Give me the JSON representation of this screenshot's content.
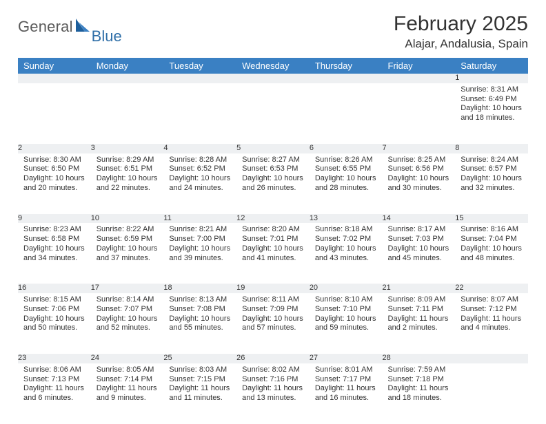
{
  "brand": {
    "general": "General",
    "blue": "Blue"
  },
  "title": "February 2025",
  "location": "Alajar, Andalusia, Spain",
  "colors": {
    "header_bg": "#3a80c3",
    "header_text": "#ffffff",
    "daynum_bg": "#eef0f2",
    "row_border": "#3a80c3",
    "logo_blue": "#2f6fa8",
    "logo_gray": "#5a5a5a"
  },
  "day_names": [
    "Sunday",
    "Monday",
    "Tuesday",
    "Wednesday",
    "Thursday",
    "Friday",
    "Saturday"
  ],
  "weeks": [
    [
      null,
      null,
      null,
      null,
      null,
      null,
      {
        "n": "1",
        "sr": "Sunrise: 8:31 AM",
        "ss": "Sunset: 6:49 PM",
        "dl": "Daylight: 10 hours and 18 minutes."
      }
    ],
    [
      {
        "n": "2",
        "sr": "Sunrise: 8:30 AM",
        "ss": "Sunset: 6:50 PM",
        "dl": "Daylight: 10 hours and 20 minutes."
      },
      {
        "n": "3",
        "sr": "Sunrise: 8:29 AM",
        "ss": "Sunset: 6:51 PM",
        "dl": "Daylight: 10 hours and 22 minutes."
      },
      {
        "n": "4",
        "sr": "Sunrise: 8:28 AM",
        "ss": "Sunset: 6:52 PM",
        "dl": "Daylight: 10 hours and 24 minutes."
      },
      {
        "n": "5",
        "sr": "Sunrise: 8:27 AM",
        "ss": "Sunset: 6:53 PM",
        "dl": "Daylight: 10 hours and 26 minutes."
      },
      {
        "n": "6",
        "sr": "Sunrise: 8:26 AM",
        "ss": "Sunset: 6:55 PM",
        "dl": "Daylight: 10 hours and 28 minutes."
      },
      {
        "n": "7",
        "sr": "Sunrise: 8:25 AM",
        "ss": "Sunset: 6:56 PM",
        "dl": "Daylight: 10 hours and 30 minutes."
      },
      {
        "n": "8",
        "sr": "Sunrise: 8:24 AM",
        "ss": "Sunset: 6:57 PM",
        "dl": "Daylight: 10 hours and 32 minutes."
      }
    ],
    [
      {
        "n": "9",
        "sr": "Sunrise: 8:23 AM",
        "ss": "Sunset: 6:58 PM",
        "dl": "Daylight: 10 hours and 34 minutes."
      },
      {
        "n": "10",
        "sr": "Sunrise: 8:22 AM",
        "ss": "Sunset: 6:59 PM",
        "dl": "Daylight: 10 hours and 37 minutes."
      },
      {
        "n": "11",
        "sr": "Sunrise: 8:21 AM",
        "ss": "Sunset: 7:00 PM",
        "dl": "Daylight: 10 hours and 39 minutes."
      },
      {
        "n": "12",
        "sr": "Sunrise: 8:20 AM",
        "ss": "Sunset: 7:01 PM",
        "dl": "Daylight: 10 hours and 41 minutes."
      },
      {
        "n": "13",
        "sr": "Sunrise: 8:18 AM",
        "ss": "Sunset: 7:02 PM",
        "dl": "Daylight: 10 hours and 43 minutes."
      },
      {
        "n": "14",
        "sr": "Sunrise: 8:17 AM",
        "ss": "Sunset: 7:03 PM",
        "dl": "Daylight: 10 hours and 45 minutes."
      },
      {
        "n": "15",
        "sr": "Sunrise: 8:16 AM",
        "ss": "Sunset: 7:04 PM",
        "dl": "Daylight: 10 hours and 48 minutes."
      }
    ],
    [
      {
        "n": "16",
        "sr": "Sunrise: 8:15 AM",
        "ss": "Sunset: 7:06 PM",
        "dl": "Daylight: 10 hours and 50 minutes."
      },
      {
        "n": "17",
        "sr": "Sunrise: 8:14 AM",
        "ss": "Sunset: 7:07 PM",
        "dl": "Daylight: 10 hours and 52 minutes."
      },
      {
        "n": "18",
        "sr": "Sunrise: 8:13 AM",
        "ss": "Sunset: 7:08 PM",
        "dl": "Daylight: 10 hours and 55 minutes."
      },
      {
        "n": "19",
        "sr": "Sunrise: 8:11 AM",
        "ss": "Sunset: 7:09 PM",
        "dl": "Daylight: 10 hours and 57 minutes."
      },
      {
        "n": "20",
        "sr": "Sunrise: 8:10 AM",
        "ss": "Sunset: 7:10 PM",
        "dl": "Daylight: 10 hours and 59 minutes."
      },
      {
        "n": "21",
        "sr": "Sunrise: 8:09 AM",
        "ss": "Sunset: 7:11 PM",
        "dl": "Daylight: 11 hours and 2 minutes."
      },
      {
        "n": "22",
        "sr": "Sunrise: 8:07 AM",
        "ss": "Sunset: 7:12 PM",
        "dl": "Daylight: 11 hours and 4 minutes."
      }
    ],
    [
      {
        "n": "23",
        "sr": "Sunrise: 8:06 AM",
        "ss": "Sunset: 7:13 PM",
        "dl": "Daylight: 11 hours and 6 minutes."
      },
      {
        "n": "24",
        "sr": "Sunrise: 8:05 AM",
        "ss": "Sunset: 7:14 PM",
        "dl": "Daylight: 11 hours and 9 minutes."
      },
      {
        "n": "25",
        "sr": "Sunrise: 8:03 AM",
        "ss": "Sunset: 7:15 PM",
        "dl": "Daylight: 11 hours and 11 minutes."
      },
      {
        "n": "26",
        "sr": "Sunrise: 8:02 AM",
        "ss": "Sunset: 7:16 PM",
        "dl": "Daylight: 11 hours and 13 minutes."
      },
      {
        "n": "27",
        "sr": "Sunrise: 8:01 AM",
        "ss": "Sunset: 7:17 PM",
        "dl": "Daylight: 11 hours and 16 minutes."
      },
      {
        "n": "28",
        "sr": "Sunrise: 7:59 AM",
        "ss": "Sunset: 7:18 PM",
        "dl": "Daylight: 11 hours and 18 minutes."
      },
      null
    ]
  ]
}
